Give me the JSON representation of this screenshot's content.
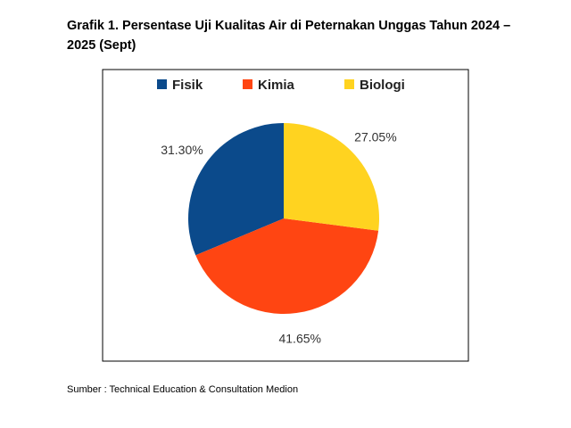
{
  "chart_data": {
    "type": "pie",
    "title": "Grafik 1. Persentase Uji Kualitas Air di Peternakan Unggas Tahun 2024 – 2025 (Sept)",
    "categories": [
      "Fisik",
      "Kimia",
      "Biologi"
    ],
    "values": [
      31.3,
      41.65,
      27.05
    ],
    "value_labels": [
      "31.30%",
      "41.65%",
      "27.05%"
    ],
    "colors": [
      "#0b4a8b",
      "#ff4512",
      "#ffd320"
    ],
    "legend": "top",
    "source": "Sumber : Technical Education & Consultation Medion"
  }
}
